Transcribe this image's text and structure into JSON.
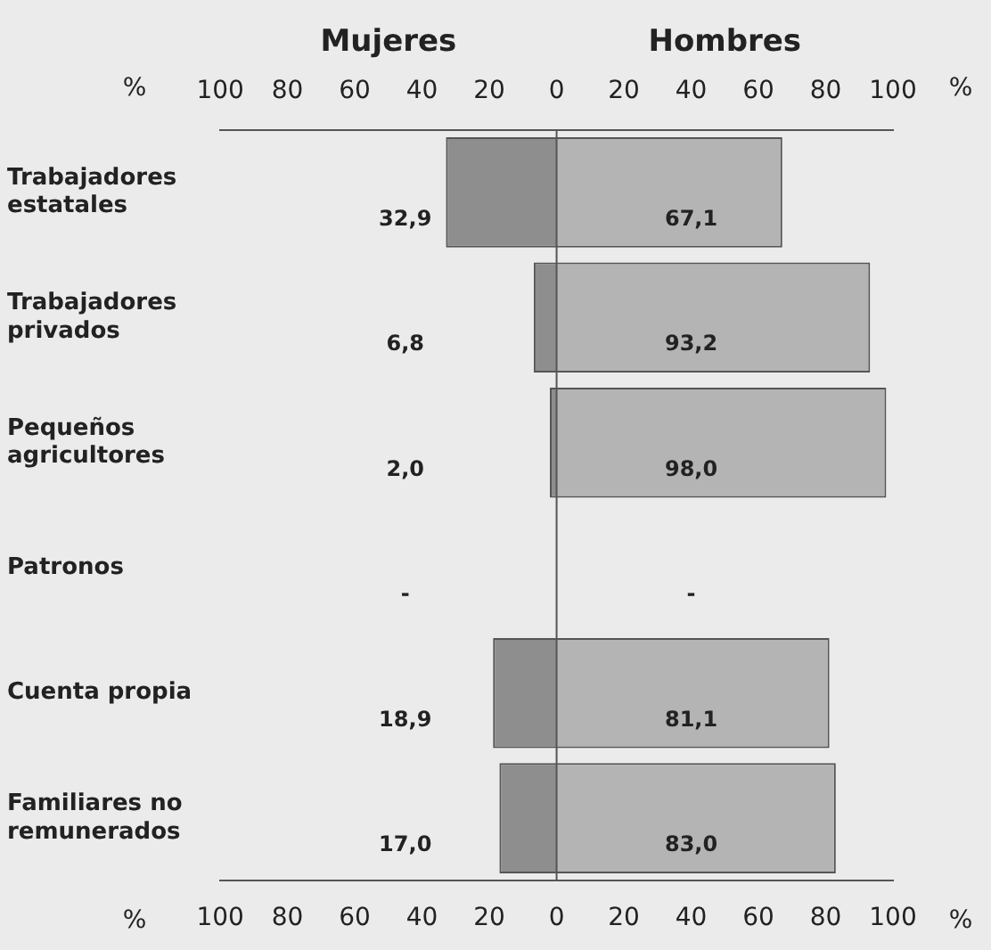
{
  "chart_data": {
    "type": "bar",
    "orientation": "horizontal",
    "categories": [
      "Trabajadores estatales",
      "Trabajadores privados",
      "Pequeños agricultores",
      "Patronos",
      "Cuenta propia",
      "Familiares no remunerados"
    ],
    "series": [
      {
        "name": "Mujeres",
        "color": "#8e8e8e",
        "values": [
          32.9,
          6.8,
          2.0,
          null,
          18.9,
          17.0
        ],
        "base": [
          -32.9,
          -6.8,
          -2.0,
          null,
          -18.9,
          -17.0
        ],
        "value_labels": [
          "32,9",
          "6,8",
          "2,0",
          "-",
          "18,9",
          "17,0"
        ]
      },
      {
        "name": "Hombres",
        "color": "#b4b4b4",
        "values": [
          67.1,
          93.2,
          98.0,
          null,
          81.1,
          83.0
        ],
        "value_labels": [
          "67,1",
          "93,2",
          "98,0",
          "-",
          "81,1",
          "83,0"
        ]
      }
    ],
    "xlabel": "%",
    "x2label": "%",
    "xlim": [
      -100,
      100
    ],
    "xticks": [
      {
        "value": -100,
        "label": "100"
      },
      {
        "value": -80,
        "label": "80"
      },
      {
        "value": -60,
        "label": "60"
      },
      {
        "value": -40,
        "label": "40"
      },
      {
        "value": -20,
        "label": "20"
      },
      0,
      20,
      40,
      60,
      80,
      100
    ],
    "x2lim": [
      -100,
      100
    ],
    "x2ticks": [
      {
        "value": -100,
        "label": "100"
      },
      {
        "value": -80,
        "label": "80"
      },
      {
        "value": -60,
        "label": "60"
      },
      {
        "value": -40,
        "label": "40"
      },
      {
        "value": -20,
        "label": "20"
      },
      0,
      20,
      40,
      60,
      80,
      100
    ],
    "ref_lines": [
      {
        "axis": "x",
        "value": 0
      }
    ],
    "grid": false,
    "legend": false
  }
}
